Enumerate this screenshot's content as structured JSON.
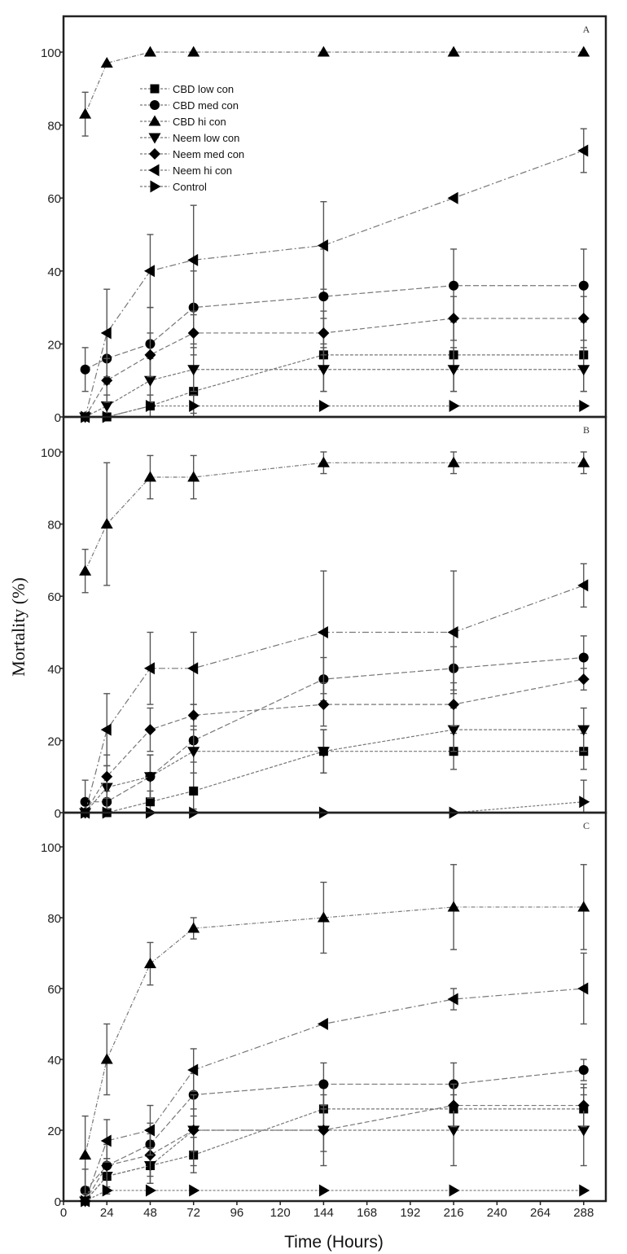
{
  "chart_data": {
    "type": "line",
    "xlabel": "Time (Hours)",
    "ylabel": "Mortality (%)",
    "x_ticks": [
      0,
      24,
      48,
      72,
      96,
      120,
      144,
      168,
      192,
      216,
      240,
      264,
      288
    ],
    "y_ticks": [
      0,
      20,
      40,
      60,
      80,
      100
    ],
    "xlim": [
      0,
      300
    ],
    "ylim": [
      0,
      110
    ],
    "x": [
      12,
      24,
      48,
      72,
      144,
      216,
      288
    ],
    "legend": {
      "position": "upper-left (panel A)",
      "entries": [
        {
          "name": "CBD low con",
          "marker": "square"
        },
        {
          "name": "CBD med con",
          "marker": "circle"
        },
        {
          "name": "CBD hi con",
          "marker": "triangle-up"
        },
        {
          "name": "Neem low con",
          "marker": "triangle-down"
        },
        {
          "name": "Neem med con",
          "marker": "diamond"
        },
        {
          "name": "Neem hi con",
          "marker": "triangle-left"
        },
        {
          "name": "Control",
          "marker": "triangle-right"
        }
      ]
    },
    "panels": [
      {
        "label": "A",
        "series": [
          {
            "name": "CBD low con",
            "marker": "square",
            "values": [
              0,
              0,
              3,
              7,
              17,
              17,
              17
            ],
            "err": [
              0,
              0,
              3,
              6,
              10,
              10,
              10
            ]
          },
          {
            "name": "CBD med con",
            "marker": "circle",
            "values": [
              13,
              16,
              20,
              30,
              33,
              36,
              36
            ],
            "err": [
              6,
              7,
              10,
              10,
              13,
              10,
              10
            ]
          },
          {
            "name": "CBD hi con",
            "marker": "triangle-up",
            "values": [
              83,
              97,
              100,
              100,
              100,
              100,
              100
            ],
            "err": [
              6,
              0,
              0,
              0,
              0,
              0,
              0
            ]
          },
          {
            "name": "Neem low con",
            "marker": "triangle-down",
            "values": [
              0,
              3,
              10,
              13,
              13,
              13,
              13
            ],
            "err": [
              0,
              3,
              6,
              6,
              6,
              6,
              6
            ]
          },
          {
            "name": "Neem med con",
            "marker": "diamond",
            "values": [
              0,
              10,
              17,
              23,
              23,
              27,
              27
            ],
            "err": [
              0,
              6,
              6,
              6,
              6,
              6,
              6
            ]
          },
          {
            "name": "Neem hi con",
            "marker": "triangle-left",
            "values": [
              0,
              23,
              40,
              43,
              47,
              60,
              73
            ],
            "err": [
              0,
              12,
              10,
              15,
              12,
              0,
              6
            ]
          },
          {
            "name": "Control",
            "marker": "triangle-right",
            "values": [
              0,
              0,
              3,
              3,
              3,
              3,
              3
            ],
            "err": [
              0,
              0,
              0,
              3,
              0,
              0,
              0
            ]
          }
        ]
      },
      {
        "label": "B",
        "series": [
          {
            "name": "CBD low con",
            "marker": "square",
            "values": [
              0,
              0,
              3,
              6,
              17,
              17,
              17
            ],
            "err": [
              0,
              0,
              3,
              5,
              6,
              5,
              5
            ]
          },
          {
            "name": "CBD med con",
            "marker": "circle",
            "values": [
              3,
              3,
              10,
              20,
              37,
              40,
              43
            ],
            "err": [
              6,
              3,
              6,
              6,
              6,
              6,
              6
            ]
          },
          {
            "name": "CBD hi con",
            "marker": "triangle-up",
            "values": [
              67,
              80,
              93,
              93,
              97,
              97,
              97
            ],
            "err": [
              6,
              17,
              6,
              6,
              3,
              3,
              3
            ]
          },
          {
            "name": "Neem low con",
            "marker": "triangle-down",
            "values": [
              0,
              7,
              10,
              17,
              17,
              23,
              23
            ],
            "err": [
              0,
              6,
              6,
              6,
              6,
              6,
              6
            ]
          },
          {
            "name": "Neem med con",
            "marker": "diamond",
            "values": [
              0,
              10,
              23,
              27,
              30,
              30,
              37
            ],
            "err": [
              0,
              6,
              6,
              3,
              6,
              6,
              3
            ]
          },
          {
            "name": "Neem hi con",
            "marker": "triangle-left",
            "values": [
              0,
              23,
              40,
              40,
              50,
              50,
              63
            ],
            "err": [
              0,
              10,
              10,
              10,
              17,
              17,
              6
            ]
          },
          {
            "name": "Control",
            "marker": "triangle-right",
            "values": [
              0,
              0,
              0,
              0,
              0,
              0,
              3
            ],
            "err": [
              0,
              0,
              0,
              0,
              0,
              0,
              6
            ]
          }
        ]
      },
      {
        "label": "C",
        "series": [
          {
            "name": "CBD low con",
            "marker": "square",
            "values": [
              0,
              7,
              10,
              13,
              26,
              26,
              26
            ],
            "err": [
              0,
              5,
              5,
              5,
              6,
              6,
              6
            ]
          },
          {
            "name": "CBD med con",
            "marker": "circle",
            "values": [
              3,
              10,
              16,
              30,
              33,
              33,
              37
            ],
            "err": [
              6,
              6,
              6,
              6,
              6,
              6,
              3
            ]
          },
          {
            "name": "CBD hi con",
            "marker": "triangle-up",
            "values": [
              13,
              40,
              67,
              77,
              80,
              83,
              83
            ],
            "err": [
              11,
              10,
              6,
              3,
              10,
              12,
              12
            ]
          },
          {
            "name": "Neem low con",
            "marker": "triangle-down",
            "values": [
              0,
              7,
              10,
              20,
              20,
              20,
              20
            ],
            "err": [
              0,
              5,
              5,
              10,
              10,
              10,
              10
            ]
          },
          {
            "name": "Neem med con",
            "marker": "diamond",
            "values": [
              0,
              10,
              13,
              20,
              20,
              27,
              27
            ],
            "err": [
              0,
              6,
              6,
              6,
              6,
              6,
              6
            ]
          },
          {
            "name": "Neem hi con",
            "marker": "triangle-left",
            "values": [
              0,
              17,
              20,
              37,
              50,
              57,
              60
            ],
            "err": [
              0,
              6,
              7,
              6,
              0,
              3,
              10
            ]
          },
          {
            "name": "Control",
            "marker": "triangle-right",
            "values": [
              0,
              3,
              3,
              3,
              3,
              3,
              3
            ],
            "err": [
              0,
              0,
              0,
              0,
              0,
              0,
              0
            ]
          }
        ]
      }
    ]
  }
}
